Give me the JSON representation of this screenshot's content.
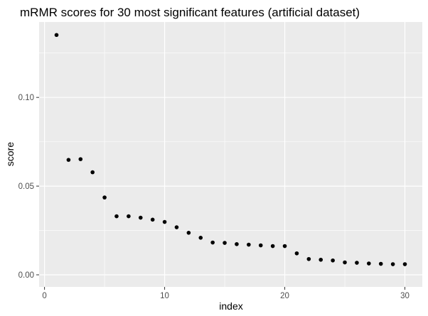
{
  "chart_data": {
    "type": "scatter",
    "title": "mRMR scores for 30 most significant features (artificial dataset)",
    "xlabel": "index",
    "ylabel": "score",
    "xlim": [
      0,
      31
    ],
    "ylim": [
      0,
      0.14
    ],
    "x_ticks": [
      0,
      10,
      20,
      30
    ],
    "x_tick_labels": [
      "0",
      "10",
      "20",
      "30"
    ],
    "y_ticks": [
      0.0,
      0.05,
      0.1
    ],
    "y_tick_labels": [
      "0.00",
      "0.05",
      "0.10"
    ],
    "grid": true,
    "colors": {
      "panel": "#ebebeb",
      "grid": "#ffffff",
      "point": "#000000"
    },
    "points": [
      {
        "x": 1,
        "y": 0.1352
      },
      {
        "x": 2,
        "y": 0.0648
      },
      {
        "x": 3,
        "y": 0.0652
      },
      {
        "x": 4,
        "y": 0.0578
      },
      {
        "x": 5,
        "y": 0.0436
      },
      {
        "x": 6,
        "y": 0.033
      },
      {
        "x": 7,
        "y": 0.033
      },
      {
        "x": 8,
        "y": 0.0322
      },
      {
        "x": 9,
        "y": 0.0311
      },
      {
        "x": 10,
        "y": 0.0298
      },
      {
        "x": 11,
        "y": 0.0268
      },
      {
        "x": 12,
        "y": 0.0237
      },
      {
        "x": 13,
        "y": 0.0209
      },
      {
        "x": 14,
        "y": 0.0182
      },
      {
        "x": 15,
        "y": 0.018
      },
      {
        "x": 16,
        "y": 0.0173
      },
      {
        "x": 17,
        "y": 0.017
      },
      {
        "x": 18,
        "y": 0.0166
      },
      {
        "x": 19,
        "y": 0.0162
      },
      {
        "x": 20,
        "y": 0.0162
      },
      {
        "x": 21,
        "y": 0.0121
      },
      {
        "x": 22,
        "y": 0.0089
      },
      {
        "x": 23,
        "y": 0.0085
      },
      {
        "x": 24,
        "y": 0.0081
      },
      {
        "x": 25,
        "y": 0.007
      },
      {
        "x": 26,
        "y": 0.0068
      },
      {
        "x": 27,
        "y": 0.0064
      },
      {
        "x": 28,
        "y": 0.0062
      },
      {
        "x": 29,
        "y": 0.006
      },
      {
        "x": 30,
        "y": 0.006
      }
    ]
  }
}
